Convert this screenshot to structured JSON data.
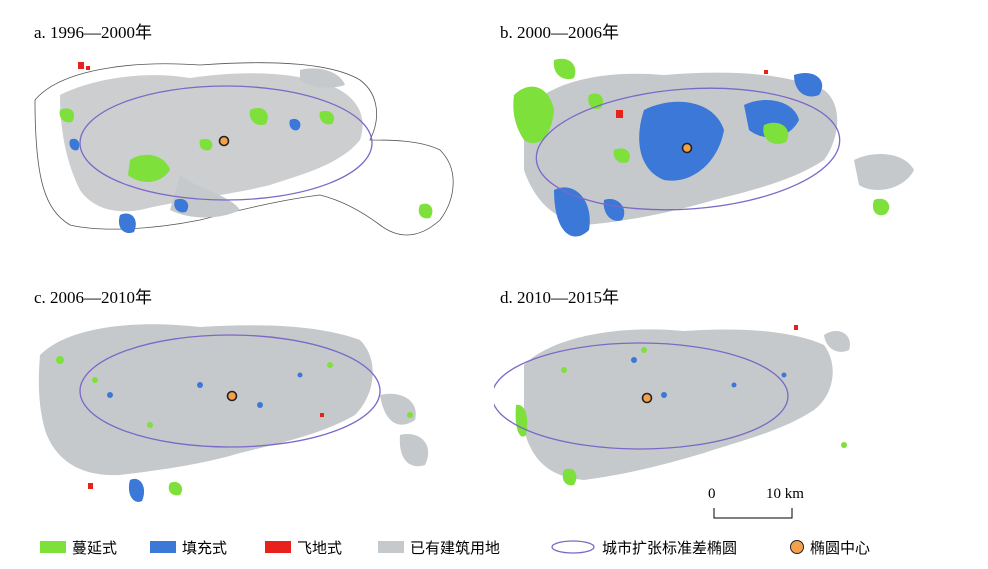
{
  "panels": [
    {
      "label": "a. 1996—2000年",
      "id": "a"
    },
    {
      "label": "b. 2000—2006年",
      "id": "b"
    },
    {
      "label": "c. 2006—2010年",
      "id": "c"
    },
    {
      "label": "d. 2010—2015年",
      "id": "d"
    }
  ],
  "legend": {
    "sprawl": "蔓延式",
    "infill": "填充式",
    "leapfrog": "飞地式",
    "existing": "已有建筑用地",
    "ellipse": "城市扩张标准差椭圆",
    "center": "椭圆中心"
  },
  "scale": {
    "zero": "0",
    "ten": "10 km"
  },
  "colors": {
    "sprawl": "#7ee03a",
    "infill": "#3b78d8",
    "leapfrog": "#e8211b",
    "existing": "#c6c9cb",
    "ellipse": "#7b68c7",
    "center": "#f5a04a",
    "boundary": "#555555"
  }
}
